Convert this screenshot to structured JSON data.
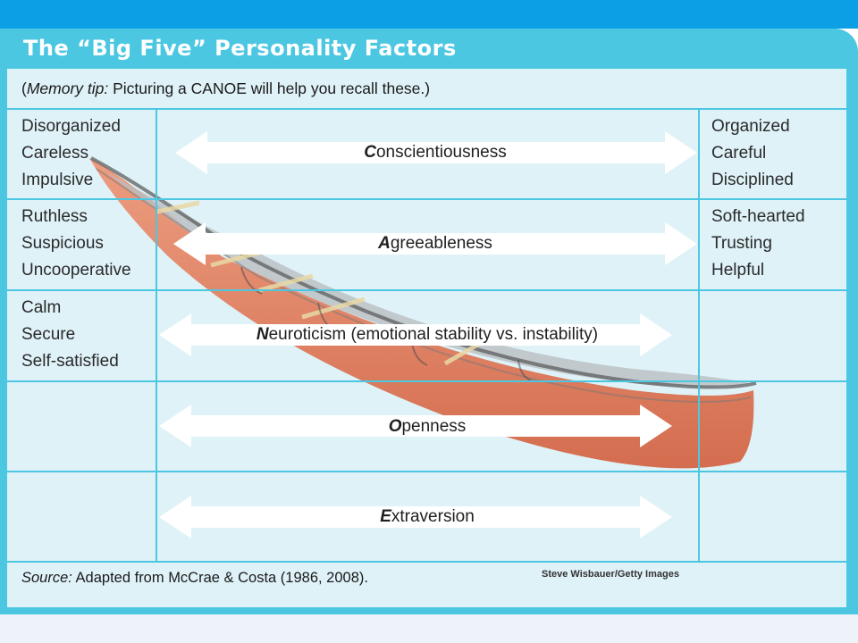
{
  "header": {
    "title": "The “Big Five” Personality Factors"
  },
  "memory_tip": {
    "open_paren": "(",
    "label": "Memory tip:",
    "text": " Picturing a CANOE will help you recall these.)"
  },
  "factors": [
    {
      "initial": "C",
      "rest": "onscientiousness",
      "left": [
        "Disorganized",
        "Careless",
        "Impulsive"
      ],
      "right": [
        "Organized",
        "Careful",
        "Disciplined"
      ]
    },
    {
      "initial": "A",
      "rest": "greeableness",
      "left": [
        "Ruthless",
        "Suspicious",
        "Uncooperative"
      ],
      "right": [
        "Soft-hearted",
        "Trusting",
        "Helpful"
      ]
    },
    {
      "initial": "N",
      "rest": "euroticism (emotional stability vs. instability)",
      "left": [
        "Calm",
        "Secure",
        "Self-satisfied"
      ],
      "right": []
    },
    {
      "initial": "O",
      "rest": "penness",
      "left": [],
      "right": []
    },
    {
      "initial": "E",
      "rest": "xtraversion",
      "left": [],
      "right": []
    }
  ],
  "source": {
    "label": "Source:",
    "text": " Adapted from McCrae & Costa (1986, 2008)."
  },
  "photo_credit": "Steve Wisbauer/Getty Images",
  "colors": {
    "accent": "#4cc7e2",
    "top_bar": "#0d9fe6",
    "card": "#dff2f8",
    "canoe": "#e0522c"
  }
}
